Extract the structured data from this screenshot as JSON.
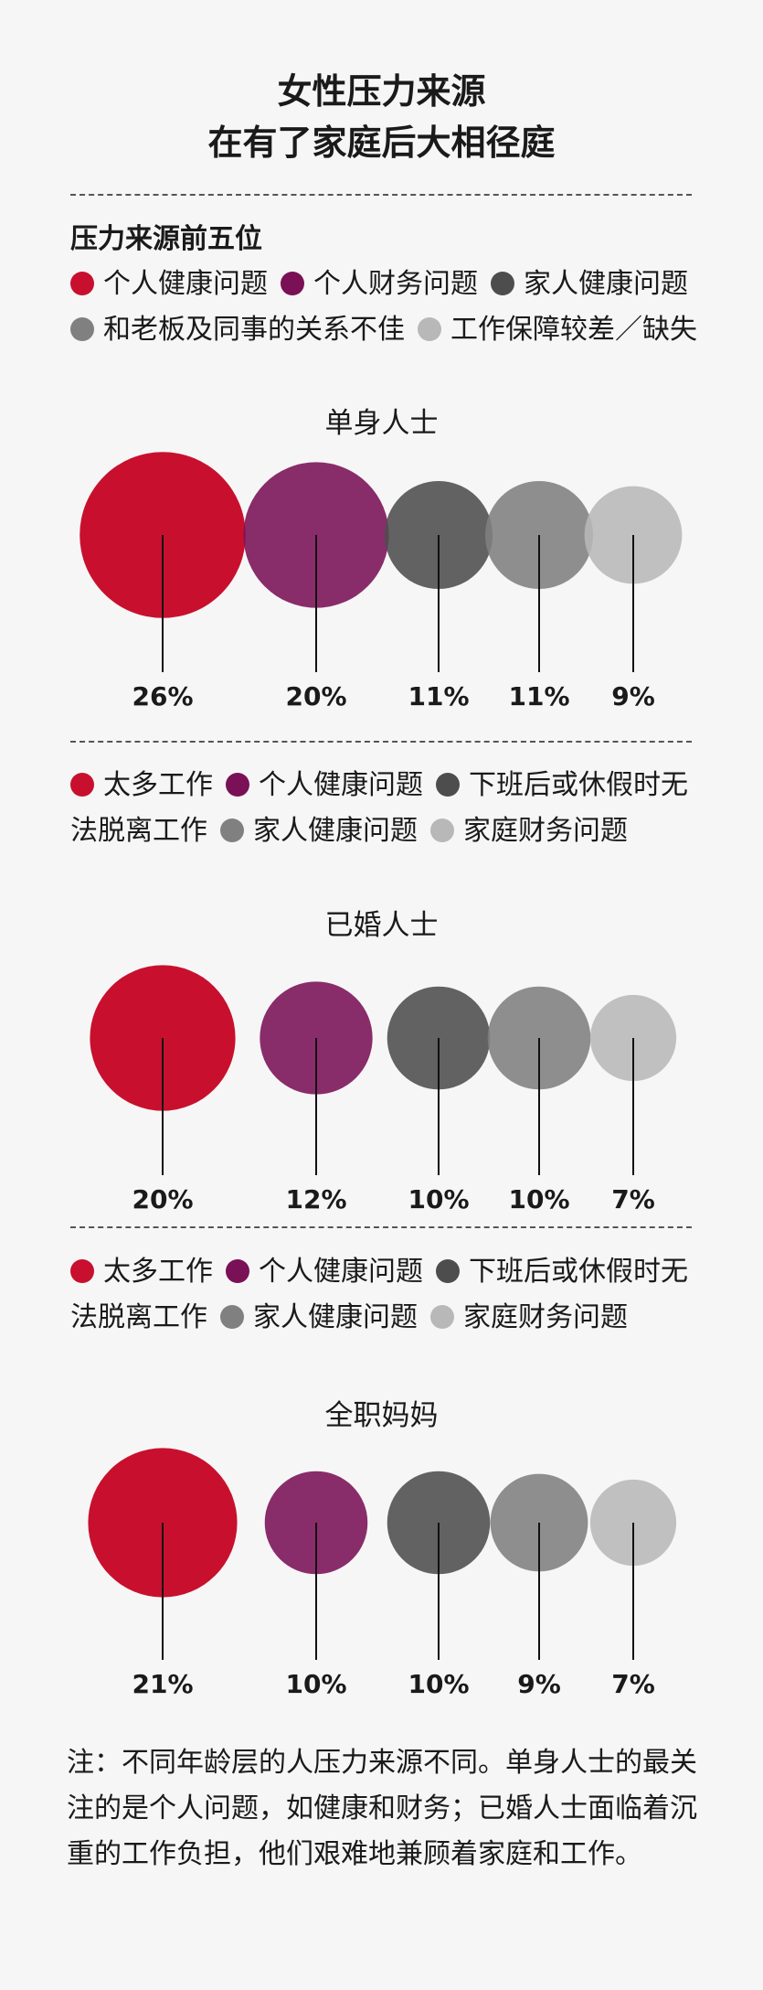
{
  "title_lines": [
    "女性压力来源",
    "在有了家庭后大相径庭"
  ],
  "subtitle": "压力来源前五位",
  "colors": [
    "#c8102e",
    "#7a1056",
    "#4d4d4d",
    "#808080",
    "#b8b8b8"
  ],
  "chart_data": [
    {
      "type": "bubble",
      "group": "单身人士",
      "categories": [
        "个人健康问题",
        "个人财务问题",
        "家人健康问题",
        "和老板及同事的关系不佳",
        "工作保障较差／缺失"
      ],
      "values": [
        26,
        20,
        11,
        11,
        9
      ],
      "labels": [
        "26%",
        "20%",
        "11%",
        "11%",
        "9%"
      ]
    },
    {
      "type": "bubble",
      "group": "已婚人士",
      "categories": [
        "太多工作",
        "个人健康问题",
        "下班后或休假时无法脱离工作",
        "家人健康问题",
        "家庭财务问题"
      ],
      "values": [
        20,
        12,
        10,
        10,
        7
      ],
      "labels": [
        "20%",
        "12%",
        "10%",
        "10%",
        "7%"
      ]
    },
    {
      "type": "bubble",
      "group": "全职妈妈",
      "categories": [
        "太多工作",
        "个人健康问题",
        "下班后或休假时无法脱离工作",
        "家人健康问题",
        "家庭财务问题"
      ],
      "values": [
        21,
        10,
        10,
        9,
        7
      ],
      "labels": [
        "21%",
        "10%",
        "10%",
        "9%",
        "7%"
      ]
    }
  ],
  "note": "注：不同年龄层的人压力来源不同。单身人士的最关注的是个人问题，如健康和财务；已婚人士面临着沉重的工作负担，他们艰难地兼顾着家庭和工作。"
}
